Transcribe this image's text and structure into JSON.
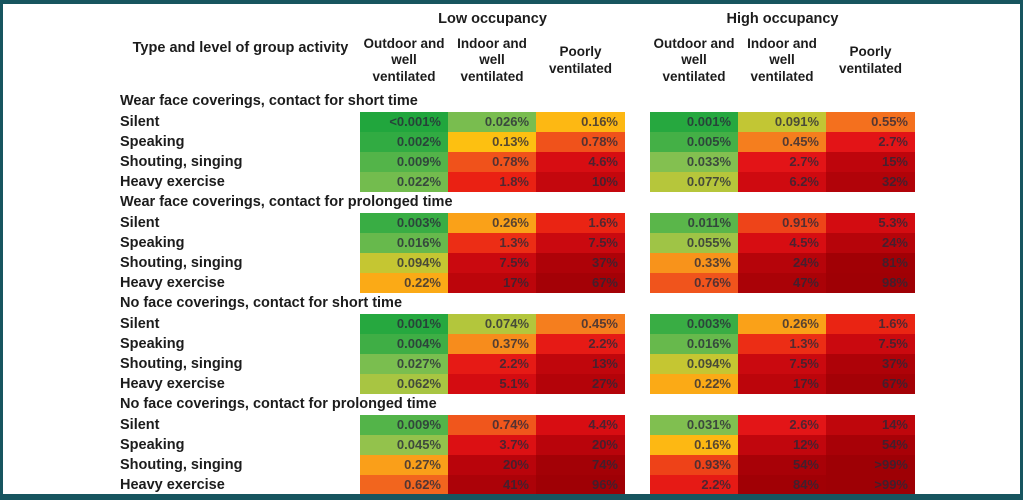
{
  "page": {
    "border_color": "#17555f",
    "background": "#ffffff",
    "text_color": "#1c1c1c"
  },
  "header": {
    "row_label": "Type and level of group activity",
    "groups": [
      {
        "label": "Low occupancy",
        "columns": [
          "Outdoor and well ventilated",
          "Indoor and well ventilated",
          "Poorly ventilated"
        ]
      },
      {
        "label": "High occupancy",
        "columns": [
          "Outdoor and well ventilated",
          "Indoor and well ventilated",
          "Poorly ventilated"
        ]
      }
    ]
  },
  "chart_data": {
    "type": "heatmap",
    "title": "",
    "colormap": "green-yellow-orange-red (low to high risk)",
    "value_unit": "percent risk",
    "column_groups": [
      "Low occupancy",
      "High occupancy"
    ],
    "columns_per_group": [
      "Outdoor and well ventilated",
      "Indoor and well ventilated",
      "Poorly ventilated"
    ],
    "sections": [
      {
        "title": "Wear face coverings, contact for short time",
        "rows": [
          {
            "label": "Silent",
            "low": [
              {
                "v": "<0.001%",
                "c": "#21a63d"
              },
              {
                "v": "0.026%",
                "c": "#79bd4f"
              },
              {
                "v": "0.16%",
                "c": "#fdb813"
              }
            ],
            "high": [
              {
                "v": "0.001%",
                "c": "#26a83f"
              },
              {
                "v": "0.091%",
                "c": "#c2c634"
              },
              {
                "v": "0.55%",
                "c": "#f4701e"
              }
            ]
          },
          {
            "label": "Speaking",
            "low": [
              {
                "v": "0.002%",
                "c": "#31ab42"
              },
              {
                "v": "0.13%",
                "c": "#fdc011"
              },
              {
                "v": "0.78%",
                "c": "#f0521b"
              }
            ],
            "high": [
              {
                "v": "0.005%",
                "c": "#44b046"
              },
              {
                "v": "0.45%",
                "c": "#f57e1e"
              },
              {
                "v": "2.7%",
                "c": "#e31417"
              }
            ]
          },
          {
            "label": "Shouting, singing",
            "low": [
              {
                "v": "0.009%",
                "c": "#53b449"
              },
              {
                "v": "0.78%",
                "c": "#f0521b"
              },
              {
                "v": "4.6%",
                "c": "#d70d12"
              }
            ],
            "high": [
              {
                "v": "0.033%",
                "c": "#83c050"
              },
              {
                "v": "2.7%",
                "c": "#e31417"
              },
              {
                "v": "15%",
                "c": "#be050c"
              }
            ]
          },
          {
            "label": "Heavy exercise",
            "low": [
              {
                "v": "0.022%",
                "c": "#73bc4e"
              },
              {
                "v": "1.8%",
                "c": "#ea2113"
              },
              {
                "v": "10%",
                "c": "#c4070d"
              }
            ],
            "high": [
              {
                "v": "0.077%",
                "c": "#b6c63b"
              },
              {
                "v": "6.2%",
                "c": "#cf0a10"
              },
              {
                "v": "32%",
                "c": "#b10309"
              }
            ]
          }
        ]
      },
      {
        "title": "Wear face coverings, contact for prolonged time",
        "rows": [
          {
            "label": "Silent",
            "low": [
              {
                "v": "0.003%",
                "c": "#39ad44"
              },
              {
                "v": "0.26%",
                "c": "#faa118"
              },
              {
                "v": "1.6%",
                "c": "#ea2413"
              }
            ],
            "high": [
              {
                "v": "0.011%",
                "c": "#5ab64a"
              },
              {
                "v": "0.91%",
                "c": "#ee4419"
              },
              {
                "v": "5.3%",
                "c": "#d30c11"
              }
            ]
          },
          {
            "label": "Speaking",
            "low": [
              {
                "v": "0.016%",
                "c": "#67b94c"
              },
              {
                "v": "1.3%",
                "c": "#ec2d15"
              },
              {
                "v": "7.5%",
                "c": "#ca090f"
              }
            ],
            "high": [
              {
                "v": "0.055%",
                "c": "#9fc446"
              },
              {
                "v": "4.5%",
                "c": "#d70d12"
              },
              {
                "v": "24%",
                "c": "#b6040a"
              }
            ]
          },
          {
            "label": "Shouting, singing",
            "low": [
              {
                "v": "0.094%",
                "c": "#c5c632"
              },
              {
                "v": "7.5%",
                "c": "#ca090f"
              },
              {
                "v": "37%",
                "c": "#ae0208"
              }
            ],
            "high": [
              {
                "v": "0.33%",
                "c": "#f8931b"
              },
              {
                "v": "24%",
                "c": "#b6040a"
              },
              {
                "v": "81%",
                "c": "#a10005"
              }
            ]
          },
          {
            "label": "Heavy exercise",
            "low": [
              {
                "v": "0.22%",
                "c": "#fbaa16"
              },
              {
                "v": "17%",
                "c": "#bc050b"
              },
              {
                "v": "67%",
                "c": "#a40106"
              }
            ],
            "high": [
              {
                "v": "0.76%",
                "c": "#f0541c"
              },
              {
                "v": "47%",
                "c": "#aa0207"
              },
              {
                "v": "98%",
                "c": "#9f0005"
              }
            ]
          }
        ]
      },
      {
        "title": "No face coverings, contact for short time",
        "rows": [
          {
            "label": "Silent",
            "low": [
              {
                "v": "0.001%",
                "c": "#26a83f"
              },
              {
                "v": "0.074%",
                "c": "#b3c63c"
              },
              {
                "v": "0.45%",
                "c": "#f57e1e"
              }
            ],
            "high": [
              {
                "v": "0.003%",
                "c": "#39ad44"
              },
              {
                "v": "0.26%",
                "c": "#faa118"
              },
              {
                "v": "1.6%",
                "c": "#ea2413"
              }
            ]
          },
          {
            "label": "Speaking",
            "low": [
              {
                "v": "0.004%",
                "c": "#3fae45"
              },
              {
                "v": "0.37%",
                "c": "#f78c1c"
              },
              {
                "v": "2.2%",
                "c": "#e61a15"
              }
            ],
            "high": [
              {
                "v": "0.016%",
                "c": "#67b94c"
              },
              {
                "v": "1.3%",
                "c": "#ec2d15"
              },
              {
                "v": "7.5%",
                "c": "#ca090f"
              }
            ]
          },
          {
            "label": "Shouting, singing",
            "low": [
              {
                "v": "0.027%",
                "c": "#7abe4f"
              },
              {
                "v": "2.2%",
                "c": "#e61a15"
              },
              {
                "v": "13%",
                "c": "#c0060c"
              }
            ],
            "high": [
              {
                "v": "0.094%",
                "c": "#c5c632"
              },
              {
                "v": "7.5%",
                "c": "#ca090f"
              },
              {
                "v": "37%",
                "c": "#ae0208"
              }
            ]
          },
          {
            "label": "Heavy exercise",
            "low": [
              {
                "v": "0.062%",
                "c": "#a8c542"
              },
              {
                "v": "5.1%",
                "c": "#d40c11"
              },
              {
                "v": "27%",
                "c": "#b40309"
              }
            ],
            "high": [
              {
                "v": "0.22%",
                "c": "#fbaa16"
              },
              {
                "v": "17%",
                "c": "#bc050b"
              },
              {
                "v": "67%",
                "c": "#a40106"
              }
            ]
          }
        ]
      },
      {
        "title": "No face coverings, contact for prolonged time",
        "rows": [
          {
            "label": "Silent",
            "low": [
              {
                "v": "0.009%",
                "c": "#53b449"
              },
              {
                "v": "0.74%",
                "c": "#f0561c"
              },
              {
                "v": "4.4%",
                "c": "#d80d12"
              }
            ],
            "high": [
              {
                "v": "0.031%",
                "c": "#80bf50"
              },
              {
                "v": "2.6%",
                "c": "#e31517"
              },
              {
                "v": "14%",
                "c": "#bf060c"
              }
            ]
          },
          {
            "label": "Speaking",
            "low": [
              {
                "v": "0.045%",
                "c": "#93c24c"
              },
              {
                "v": "3.7%",
                "c": "#dc1013"
              },
              {
                "v": "20%",
                "c": "#b9040b"
              }
            ],
            "high": [
              {
                "v": "0.16%",
                "c": "#fdb813"
              },
              {
                "v": "12%",
                "c": "#c1060d"
              },
              {
                "v": "54%",
                "c": "#a80107"
              }
            ]
          },
          {
            "label": "Shouting, singing",
            "low": [
              {
                "v": "0.27%",
                "c": "#fa9f19"
              },
              {
                "v": "20%",
                "c": "#b9040b"
              },
              {
                "v": "74%",
                "c": "#a30106"
              }
            ],
            "high": [
              {
                "v": "0.93%",
                "c": "#ee4218"
              },
              {
                "v": "54%",
                "c": "#a80107"
              },
              {
                "v": ">99%",
                "c": "#9e0005"
              }
            ]
          },
          {
            "label": "Heavy exercise",
            "low": [
              {
                "v": "0.62%",
                "c": "#f2651e"
              },
              {
                "v": "41%",
                "c": "#ac0208"
              },
              {
                "v": "96%",
                "c": "#9f0005"
              }
            ],
            "high": [
              {
                "v": "2.2%",
                "c": "#e61a15"
              },
              {
                "v": "84%",
                "c": "#a10005"
              },
              {
                "v": ">99%",
                "c": "#9e0005"
              }
            ]
          }
        ]
      }
    ]
  }
}
